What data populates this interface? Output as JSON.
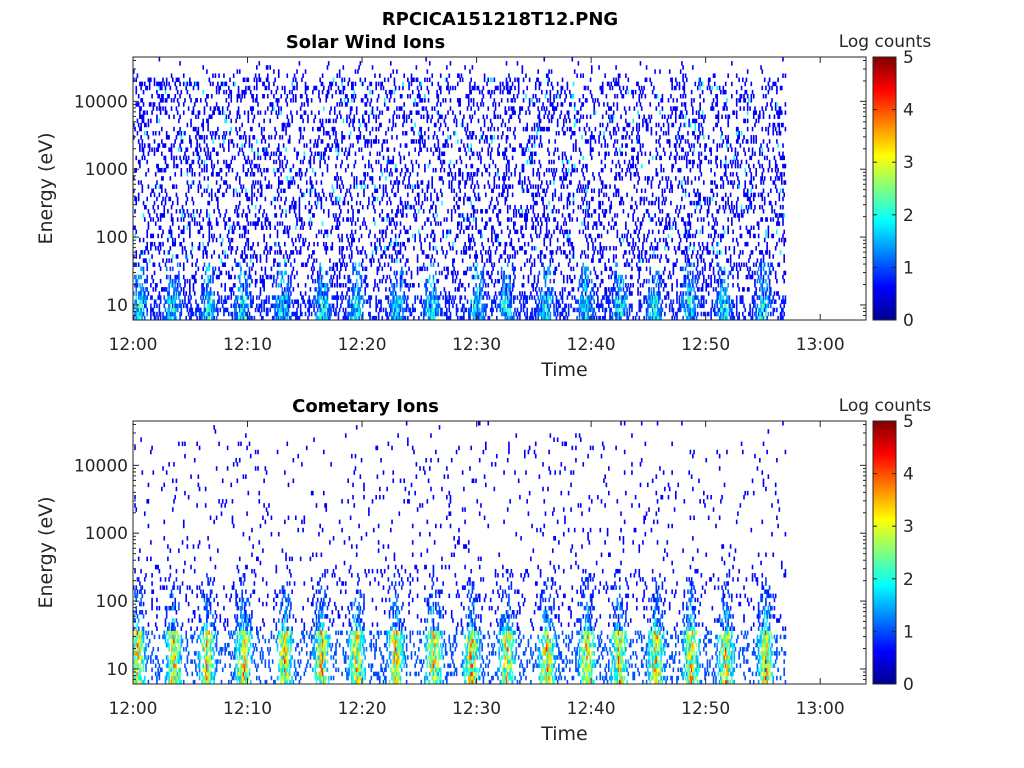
{
  "figure_title": "RPCICA151218T12.PNG",
  "chart_data": [
    {
      "type": "heatmap",
      "title": "Solar Wind Ions",
      "xlabel": "Time",
      "ylabel": "Energy (eV)",
      "x_ticks": [
        "12:00",
        "12:10",
        "12:20",
        "12:30",
        "12:40",
        "12:50",
        "13:00"
      ],
      "x_range": [
        "12:00",
        "13:04"
      ],
      "data_end": "12:57",
      "y_scale": "log",
      "y_ticks": [
        10,
        100,
        1000,
        10000
      ],
      "y_range": [
        6,
        45000
      ],
      "colorbar": {
        "label": "Log counts",
        "ticks": [
          0,
          1,
          2,
          3,
          4,
          5
        ],
        "range": [
          0,
          5
        ],
        "colormap": "jet"
      },
      "pattern": "solar-wind"
    },
    {
      "type": "heatmap",
      "title": "Cometary Ions",
      "xlabel": "Time",
      "ylabel": "Energy (eV)",
      "x_ticks": [
        "12:00",
        "12:10",
        "12:20",
        "12:30",
        "12:40",
        "12:50",
        "13:00"
      ],
      "x_range": [
        "12:00",
        "13:04"
      ],
      "data_end": "12:57",
      "y_scale": "log",
      "y_ticks": [
        10,
        100,
        1000,
        10000
      ],
      "y_range": [
        6,
        45000
      ],
      "colorbar": {
        "label": "Log counts",
        "ticks": [
          0,
          1,
          2,
          3,
          4,
          5
        ],
        "range": [
          0,
          5
        ],
        "colormap": "jet"
      },
      "pattern": "cometary"
    }
  ]
}
